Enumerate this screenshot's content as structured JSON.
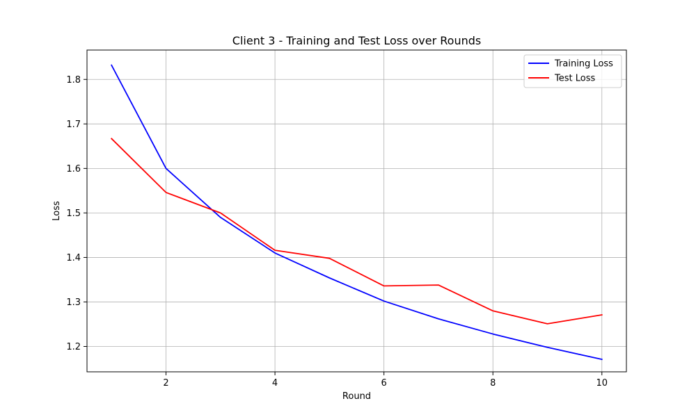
{
  "chart_data": {
    "type": "line",
    "title": "Client 3 - Training and Test Loss over Rounds",
    "xlabel": "Round",
    "ylabel": "Loss",
    "x": [
      1,
      2,
      3,
      4,
      5,
      6,
      7,
      8,
      9,
      10
    ],
    "xlim": [
      0.55,
      10.45
    ],
    "ylim": [
      1.143,
      1.866
    ],
    "xticks": [
      2,
      4,
      6,
      8,
      10
    ],
    "xtick_labels": [
      "2",
      "4",
      "6",
      "8",
      "10"
    ],
    "yticks": [
      1.2,
      1.3,
      1.4,
      1.5,
      1.6,
      1.7,
      1.8
    ],
    "ytick_labels": [
      "1.2",
      "1.3",
      "1.4",
      "1.5",
      "1.6",
      "1.7",
      "1.8"
    ],
    "grid": true,
    "legend_position": "top-right",
    "series": [
      {
        "name": "Training Loss",
        "color": "#0000ff",
        "values": [
          1.832,
          1.6,
          1.49,
          1.41,
          1.354,
          1.302,
          1.262,
          1.228,
          1.198,
          1.171
        ]
      },
      {
        "name": "Test Loss",
        "color": "#ff0000",
        "values": [
          1.667,
          1.546,
          1.5,
          1.416,
          1.398,
          1.336,
          1.338,
          1.28,
          1.251,
          1.271
        ]
      }
    ]
  }
}
